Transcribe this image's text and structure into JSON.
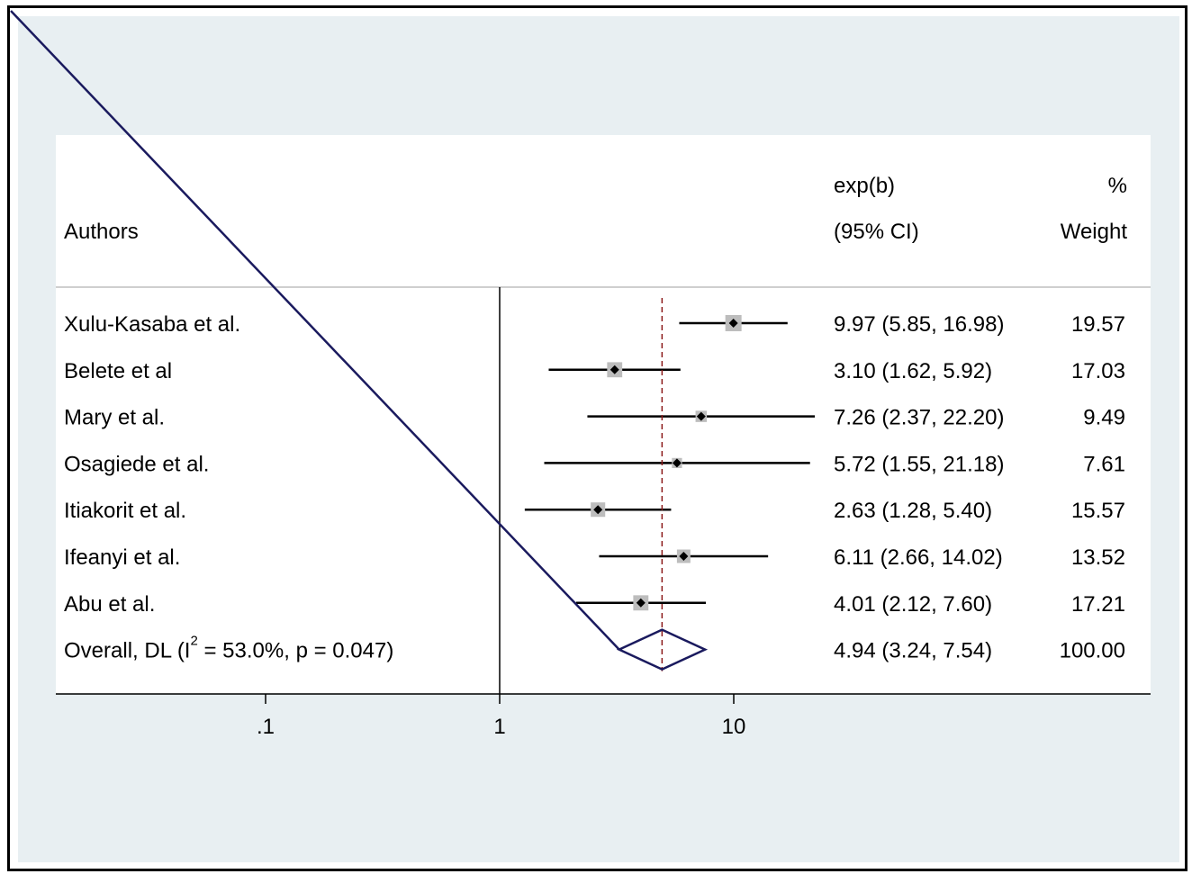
{
  "chart_data": {
    "type": "forest",
    "title": "",
    "xscale": "log",
    "xticks": [
      ".1",
      "1",
      "10"
    ],
    "header": {
      "authors": "Authors",
      "effect_line1": "exp(b)",
      "effect_line2": "(95% CI)",
      "weight_line1": "%",
      "weight_line2": "Weight"
    },
    "studies": [
      {
        "name": "Xulu-Kasaba et al.",
        "est": 9.97,
        "lo": 5.85,
        "hi": 16.98,
        "ci_text": "9.97 (5.85, 16.98)",
        "weight": 19.57,
        "weight_text": "19.57"
      },
      {
        "name": "Belete et al",
        "est": 3.1,
        "lo": 1.62,
        "hi": 5.92,
        "ci_text": "3.10 (1.62, 5.92)",
        "weight": 17.03,
        "weight_text": "17.03"
      },
      {
        "name": "Mary et al.",
        "est": 7.26,
        "lo": 2.37,
        "hi": 22.2,
        "ci_text": "7.26 (2.37, 22.20)",
        "weight": 9.49,
        "weight_text": "9.49"
      },
      {
        "name": "Osagiede et al.",
        "est": 5.72,
        "lo": 1.55,
        "hi": 21.18,
        "ci_text": "5.72 (1.55, 21.18)",
        "weight": 7.61,
        "weight_text": "7.61"
      },
      {
        "name": "Itiakorit et al.",
        "est": 2.63,
        "lo": 1.28,
        "hi": 5.4,
        "ci_text": "2.63 (1.28, 5.40)",
        "weight": 15.57,
        "weight_text": "15.57"
      },
      {
        "name": "Ifeanyi et al.",
        "est": 6.11,
        "lo": 2.66,
        "hi": 14.02,
        "ci_text": "6.11 (2.66, 14.02)",
        "weight": 13.52,
        "weight_text": "13.52"
      },
      {
        "name": "Abu et al.",
        "est": 4.01,
        "lo": 2.12,
        "hi": 7.6,
        "ci_text": "4.01 (2.12, 7.60)",
        "weight": 17.21,
        "weight_text": "17.21"
      }
    ],
    "overall": {
      "label_prefix": "Overall, DL (I",
      "label_sup": "2",
      "label_suffix": " = 53.0%, p = 0.047)",
      "est": 4.94,
      "lo": 3.24,
      "hi": 7.54,
      "ci_text": "4.94 (3.24, 7.54)",
      "weight_text": "100.00"
    },
    "colors": {
      "outer_bg": "#e8eff2",
      "plot_bg": "#ffffff",
      "diamond": "#1a1a5e",
      "overall_line": "#8b1a1a",
      "box": "#bdbdbd",
      "ci_line": "#000000"
    }
  }
}
